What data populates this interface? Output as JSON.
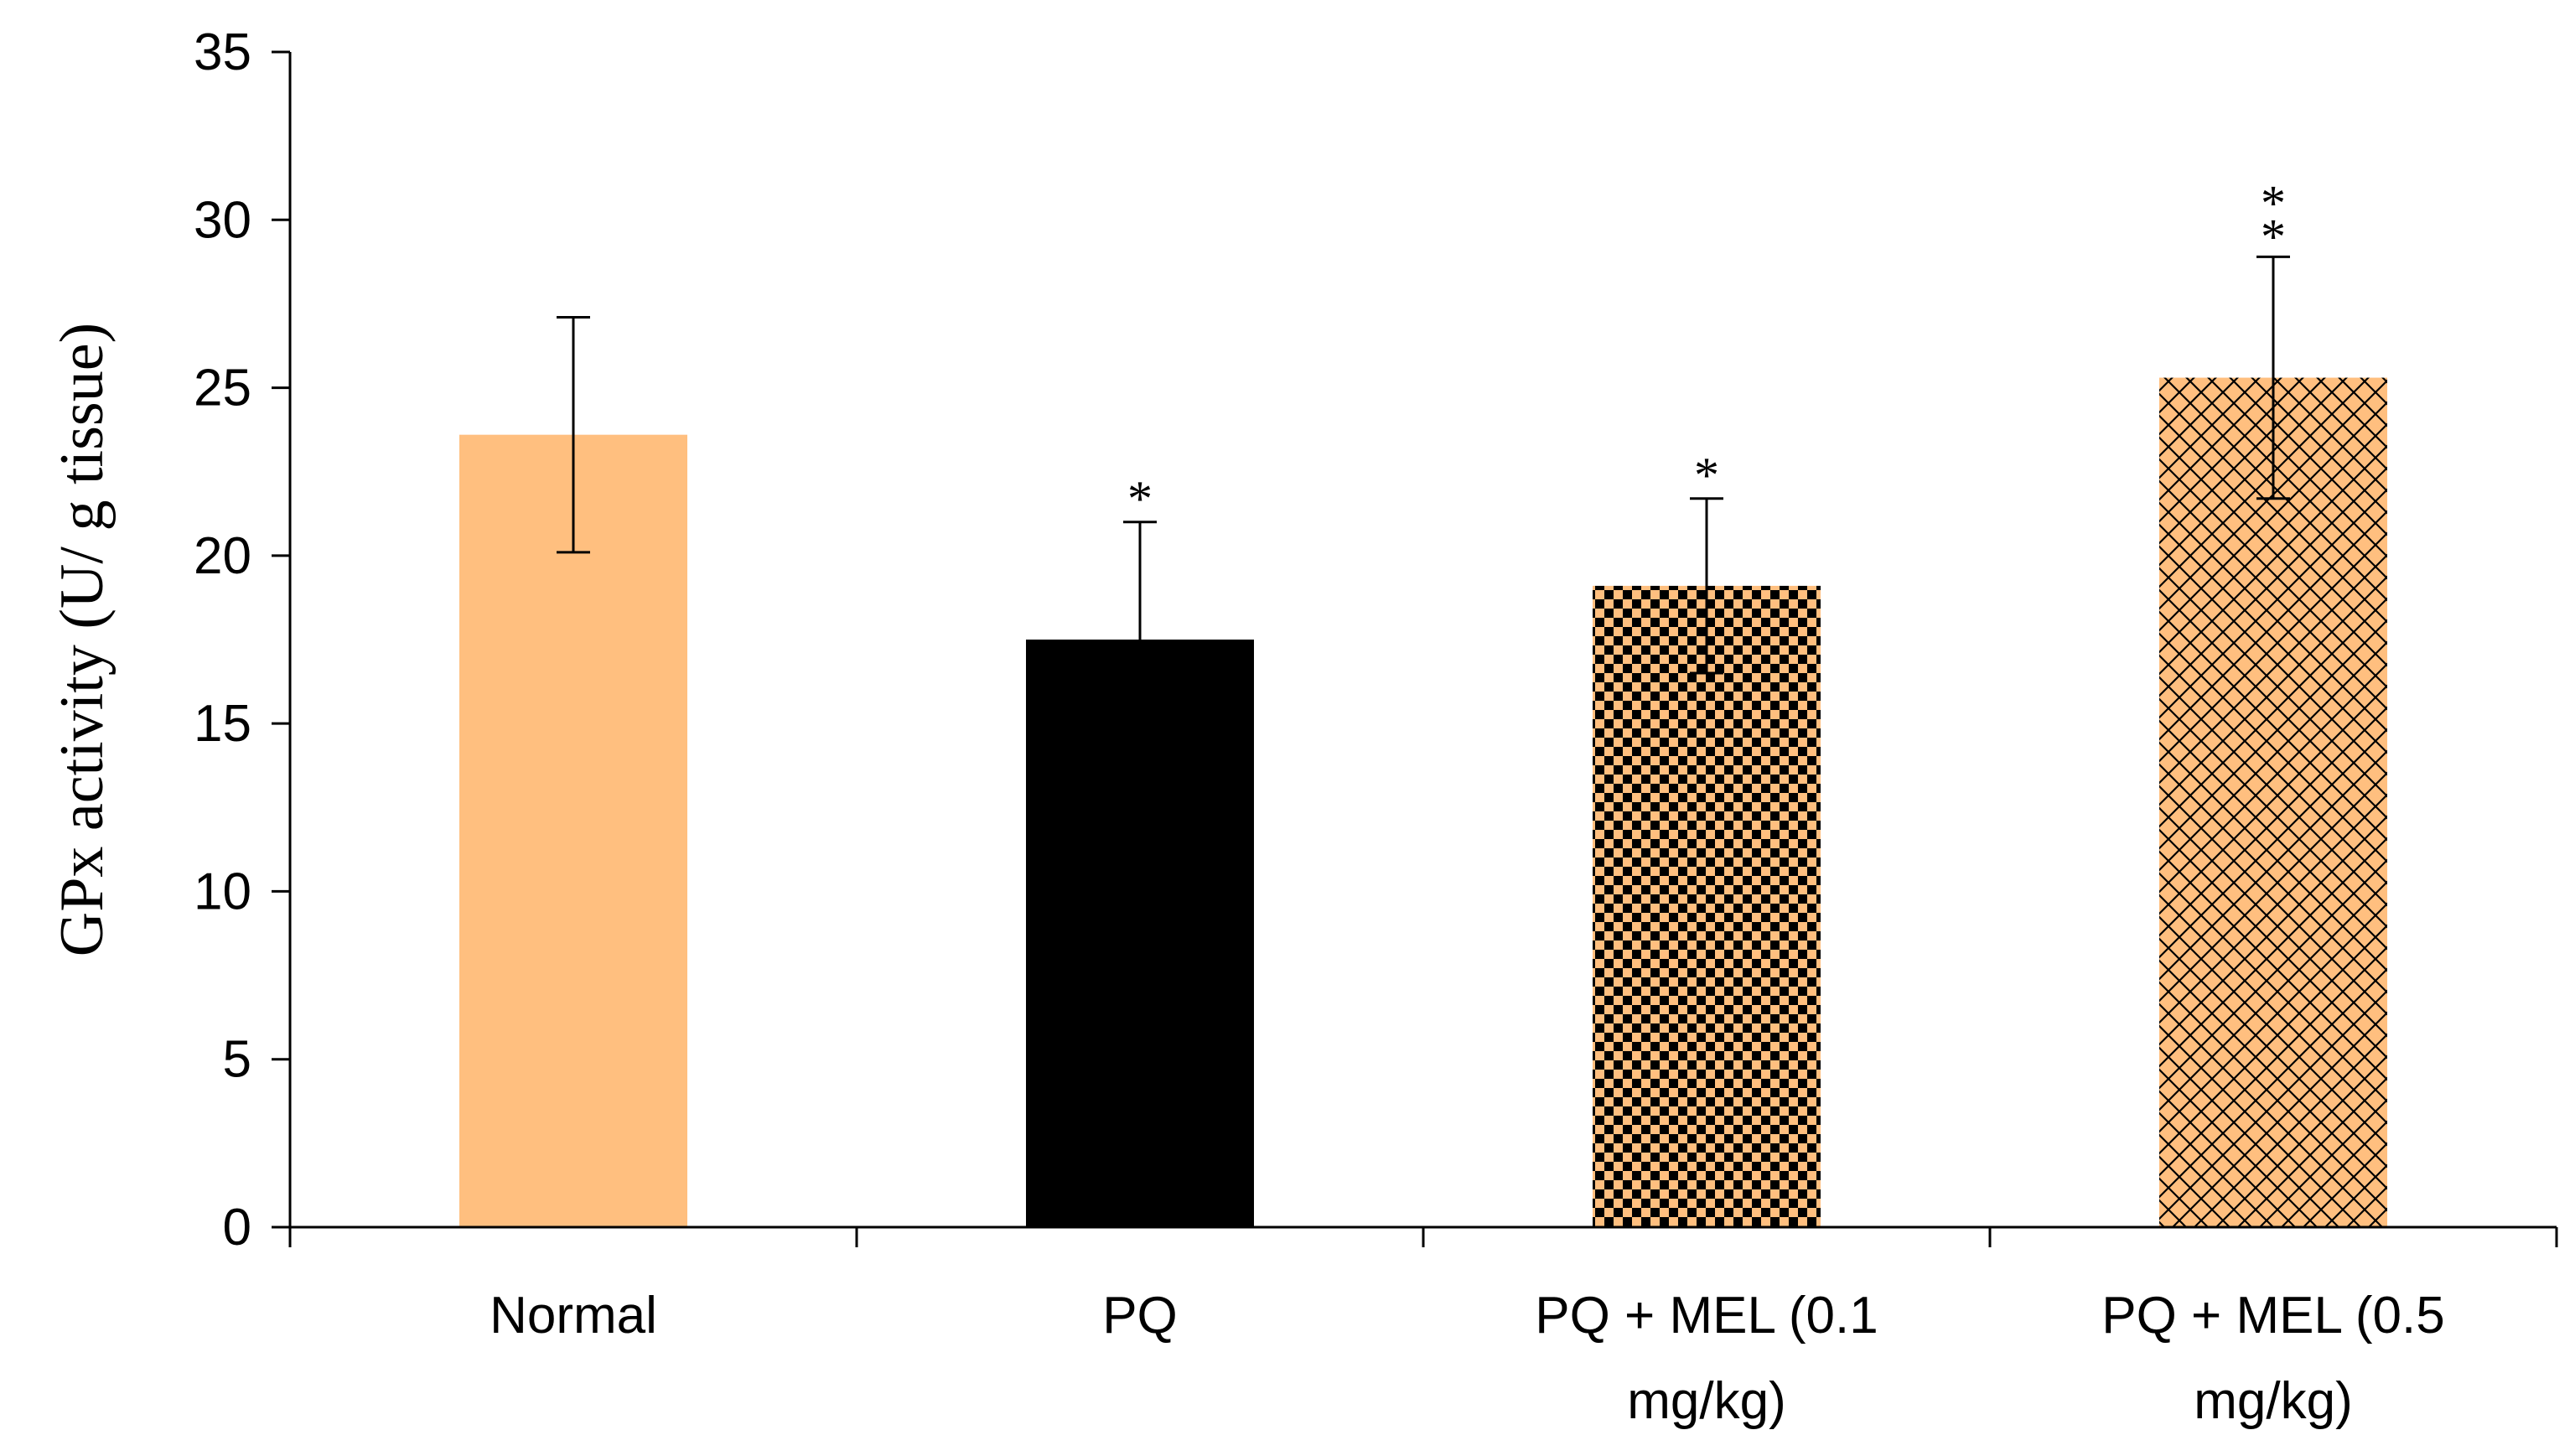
{
  "chart_data": {
    "type": "bar",
    "title": "",
    "xlabel": "",
    "ylabel": "GPx activity (U/ g tissue)",
    "ylim": [
      0,
      35
    ],
    "yticks": [
      0,
      5,
      10,
      15,
      20,
      25,
      30,
      35
    ],
    "grid": false,
    "categories": [
      {
        "label_lines": [
          "Normal"
        ]
      },
      {
        "label_lines": [
          "PQ"
        ]
      },
      {
        "label_lines": [
          "PQ + MEL (0.1",
          "mg/kg)"
        ]
      },
      {
        "label_lines": [
          "PQ + MEL (0.5",
          "mg/kg)"
        ]
      }
    ],
    "values": [
      23.6,
      17.5,
      19.1,
      25.3
    ],
    "error": [
      3.5,
      3.5,
      2.6,
      3.6
    ],
    "significance": [
      "",
      "*",
      "*",
      "* *"
    ],
    "fills": [
      "solid",
      "solid",
      "checker",
      "crosshatch"
    ],
    "colors": {
      "orange": "#FFBF7F",
      "black": "#000000",
      "axis": "#000000"
    },
    "bar_colors": [
      "#FFBF7F",
      "#000000",
      "#FFBF7F",
      "#FFBF7F"
    ]
  }
}
